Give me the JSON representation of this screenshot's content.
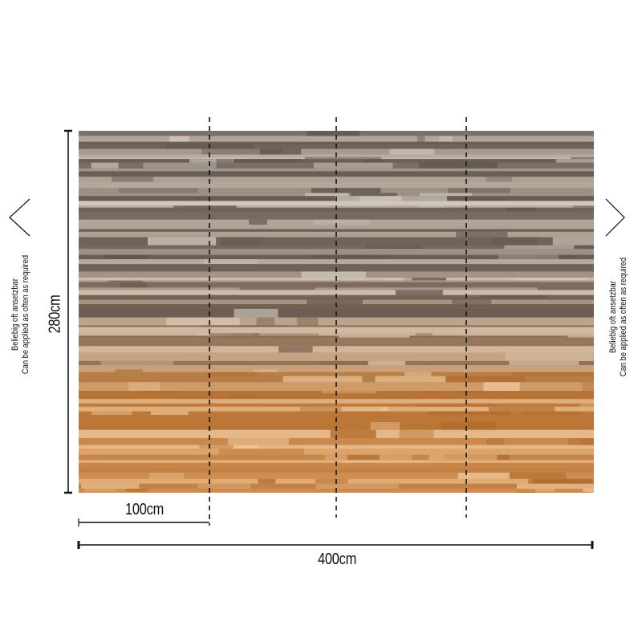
{
  "mural": {
    "height_label": "280cm",
    "panel_width_label": "100cm",
    "total_width_label": "400cm",
    "panel_count": 4,
    "repeat_note_de": "Beliebig oft ansetzbar",
    "repeat_note_en": "Can be applied as often as required",
    "colors": {
      "top_tone": "#7a6f66",
      "mid_tone": "#b59a84",
      "bottom_tone": "#d9924e",
      "light_stripe": "#e8dccd",
      "dim_line": "#111111"
    }
  }
}
